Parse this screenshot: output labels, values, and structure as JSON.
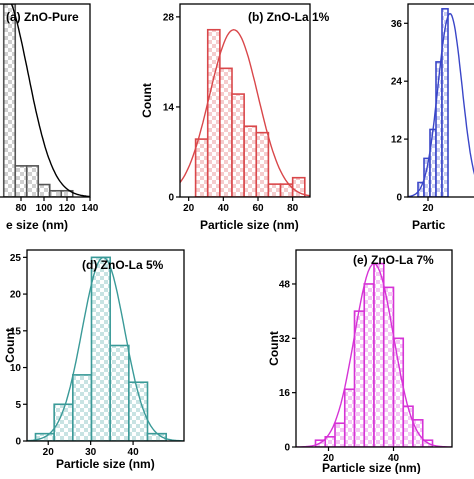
{
  "chart_data": [
    {
      "type": "bar",
      "panel": "a",
      "title": "(a) ZnO-Pure",
      "xlabel": "Particle size (nm)",
      "visible_xlabel": "e size (nm)",
      "ylabel": "",
      "color": "#555555",
      "pattern": "checker",
      "xlim": [
        60,
        140
      ],
      "ylim": [
        0,
        31
      ],
      "xticks": [
        80,
        100,
        120,
        140
      ],
      "yticks": [],
      "bin_width": 10,
      "bins": [
        {
          "x": 70,
          "value": 31
        },
        {
          "x": 80,
          "value": 5
        },
        {
          "x": 90,
          "value": 5
        },
        {
          "x": 100,
          "value": 2
        },
        {
          "x": 110,
          "value": 1
        },
        {
          "x": 120,
          "value": 1
        }
      ],
      "fit": {
        "mean": 64,
        "sd": 22,
        "peak": 33
      }
    },
    {
      "type": "bar",
      "panel": "b",
      "title": "(b) ZnO-La 1%",
      "xlabel": "Particle size (nm)",
      "ylabel": "Count",
      "color": "#d9474a",
      "pattern": "checker",
      "xlim": [
        15,
        90
      ],
      "ylim": [
        0,
        30
      ],
      "xticks": [
        20,
        40,
        60,
        80
      ],
      "yticks": [
        0,
        14,
        28
      ],
      "bin_width": 7,
      "bins": [
        {
          "x": 27.5,
          "value": 9
        },
        {
          "x": 34.5,
          "value": 26
        },
        {
          "x": 41.5,
          "value": 20
        },
        {
          "x": 48.5,
          "value": 16
        },
        {
          "x": 55.5,
          "value": 11
        },
        {
          "x": 62.5,
          "value": 10
        },
        {
          "x": 69.5,
          "value": 2
        },
        {
          "x": 76.5,
          "value": 2
        },
        {
          "x": 83.5,
          "value": 3
        }
      ],
      "fit": {
        "mean": 46,
        "sd": 14,
        "peak": 26
      }
    },
    {
      "type": "bar",
      "panel": "c",
      "title": "",
      "xlabel": "Particle size (nm)",
      "visible_xlabel": "Partic",
      "ylabel": "",
      "color": "#3a46c8",
      "pattern": "checker",
      "xlim": [
        10,
        45
      ],
      "ylim": [
        0,
        40
      ],
      "xticks": [
        20
      ],
      "yticks": [
        0,
        12,
        24,
        36
      ],
      "bin_width": 3,
      "bins": [
        {
          "x": 16.5,
          "value": 3
        },
        {
          "x": 19.5,
          "value": 8
        },
        {
          "x": 22.5,
          "value": 14
        },
        {
          "x": 25.5,
          "value": 28
        },
        {
          "x": 28.5,
          "value": 39
        }
      ],
      "fit": {
        "mean": 31,
        "sd": 6,
        "peak": 38
      }
    },
    {
      "type": "bar",
      "panel": "d",
      "title": "(d) ZnO-La 5%",
      "xlabel": "Particle size (nm)",
      "ylabel": "Count",
      "color": "#3a9a98",
      "pattern": "checker",
      "xlim": [
        15,
        52
      ],
      "ylim": [
        0,
        26
      ],
      "xticks": [
        20,
        30,
        40
      ],
      "yticks": [
        0,
        5,
        10,
        15,
        20,
        25
      ],
      "bin_width": 4.4,
      "bins": [
        {
          "x": 19.2,
          "value": 1
        },
        {
          "x": 23.6,
          "value": 5
        },
        {
          "x": 28.0,
          "value": 9
        },
        {
          "x": 32.4,
          "value": 25
        },
        {
          "x": 36.8,
          "value": 13
        },
        {
          "x": 41.2,
          "value": 8
        },
        {
          "x": 45.6,
          "value": 1
        }
      ],
      "fit": {
        "mean": 33,
        "sd": 5,
        "peak": 25
      }
    },
    {
      "type": "bar",
      "panel": "e",
      "title": "(e) ZnO-La 7%",
      "xlabel": "Particle size (nm)",
      "ylabel": "Count",
      "color": "#d633d6",
      "pattern": "checker",
      "xlim": [
        10,
        58
      ],
      "ylim": [
        0,
        58
      ],
      "xticks": [
        20,
        40
      ],
      "yticks": [
        0,
        16,
        32,
        48
      ],
      "bin_width": 3,
      "bins": [
        {
          "x": 17.5,
          "value": 2
        },
        {
          "x": 20.5,
          "value": 3
        },
        {
          "x": 23.5,
          "value": 7
        },
        {
          "x": 26.5,
          "value": 17
        },
        {
          "x": 29.5,
          "value": 40
        },
        {
          "x": 32.5,
          "value": 48
        },
        {
          "x": 35.5,
          "value": 54
        },
        {
          "x": 38.5,
          "value": 47
        },
        {
          "x": 41.5,
          "value": 32
        },
        {
          "x": 44.5,
          "value": 12
        },
        {
          "x": 47.5,
          "value": 8
        },
        {
          "x": 50.5,
          "value": 2
        }
      ],
      "fit": {
        "mean": 34,
        "sd": 6,
        "peak": 54
      }
    }
  ]
}
